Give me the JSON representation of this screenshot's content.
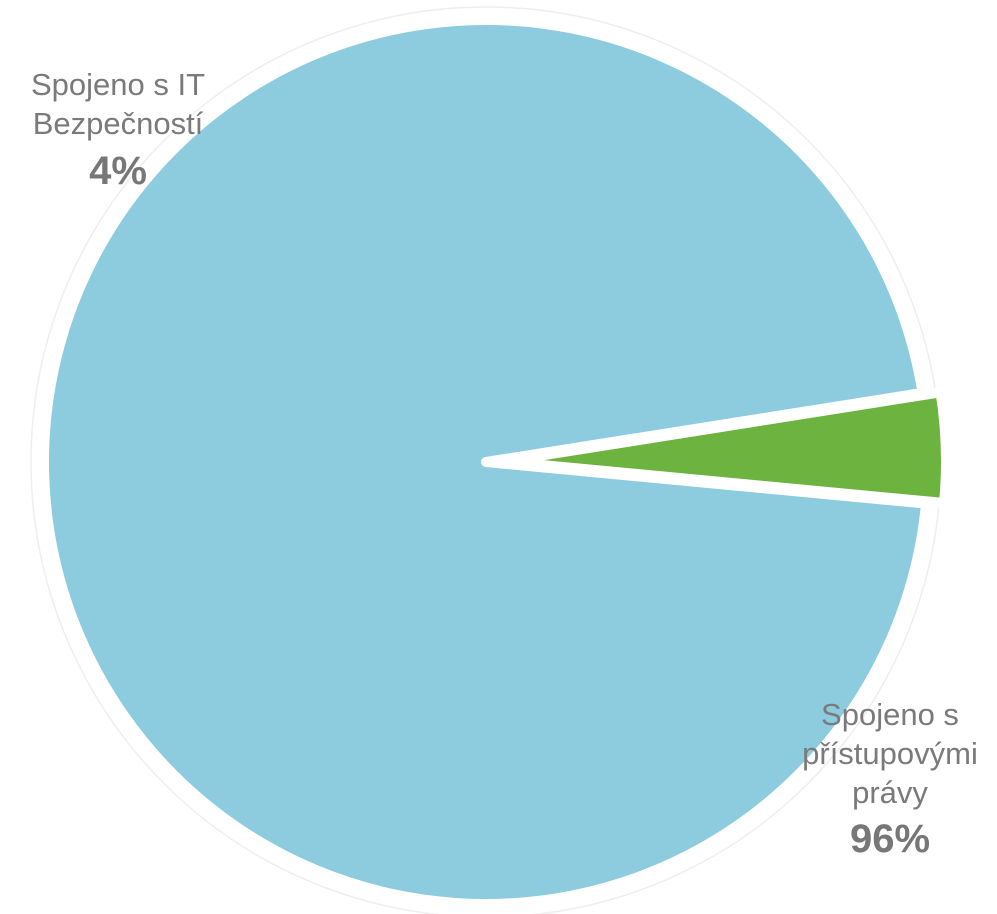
{
  "chart_data": {
    "type": "pie",
    "exploded": true,
    "slices": [
      {
        "label": "Spojeno s přístupovými právy",
        "value": 96,
        "display": "96%",
        "color": "#8dcbdf"
      },
      {
        "label": "Spojeno s IT Bezpečností",
        "value": 4,
        "display": "4%",
        "color": "#6db33f"
      }
    ]
  }
}
